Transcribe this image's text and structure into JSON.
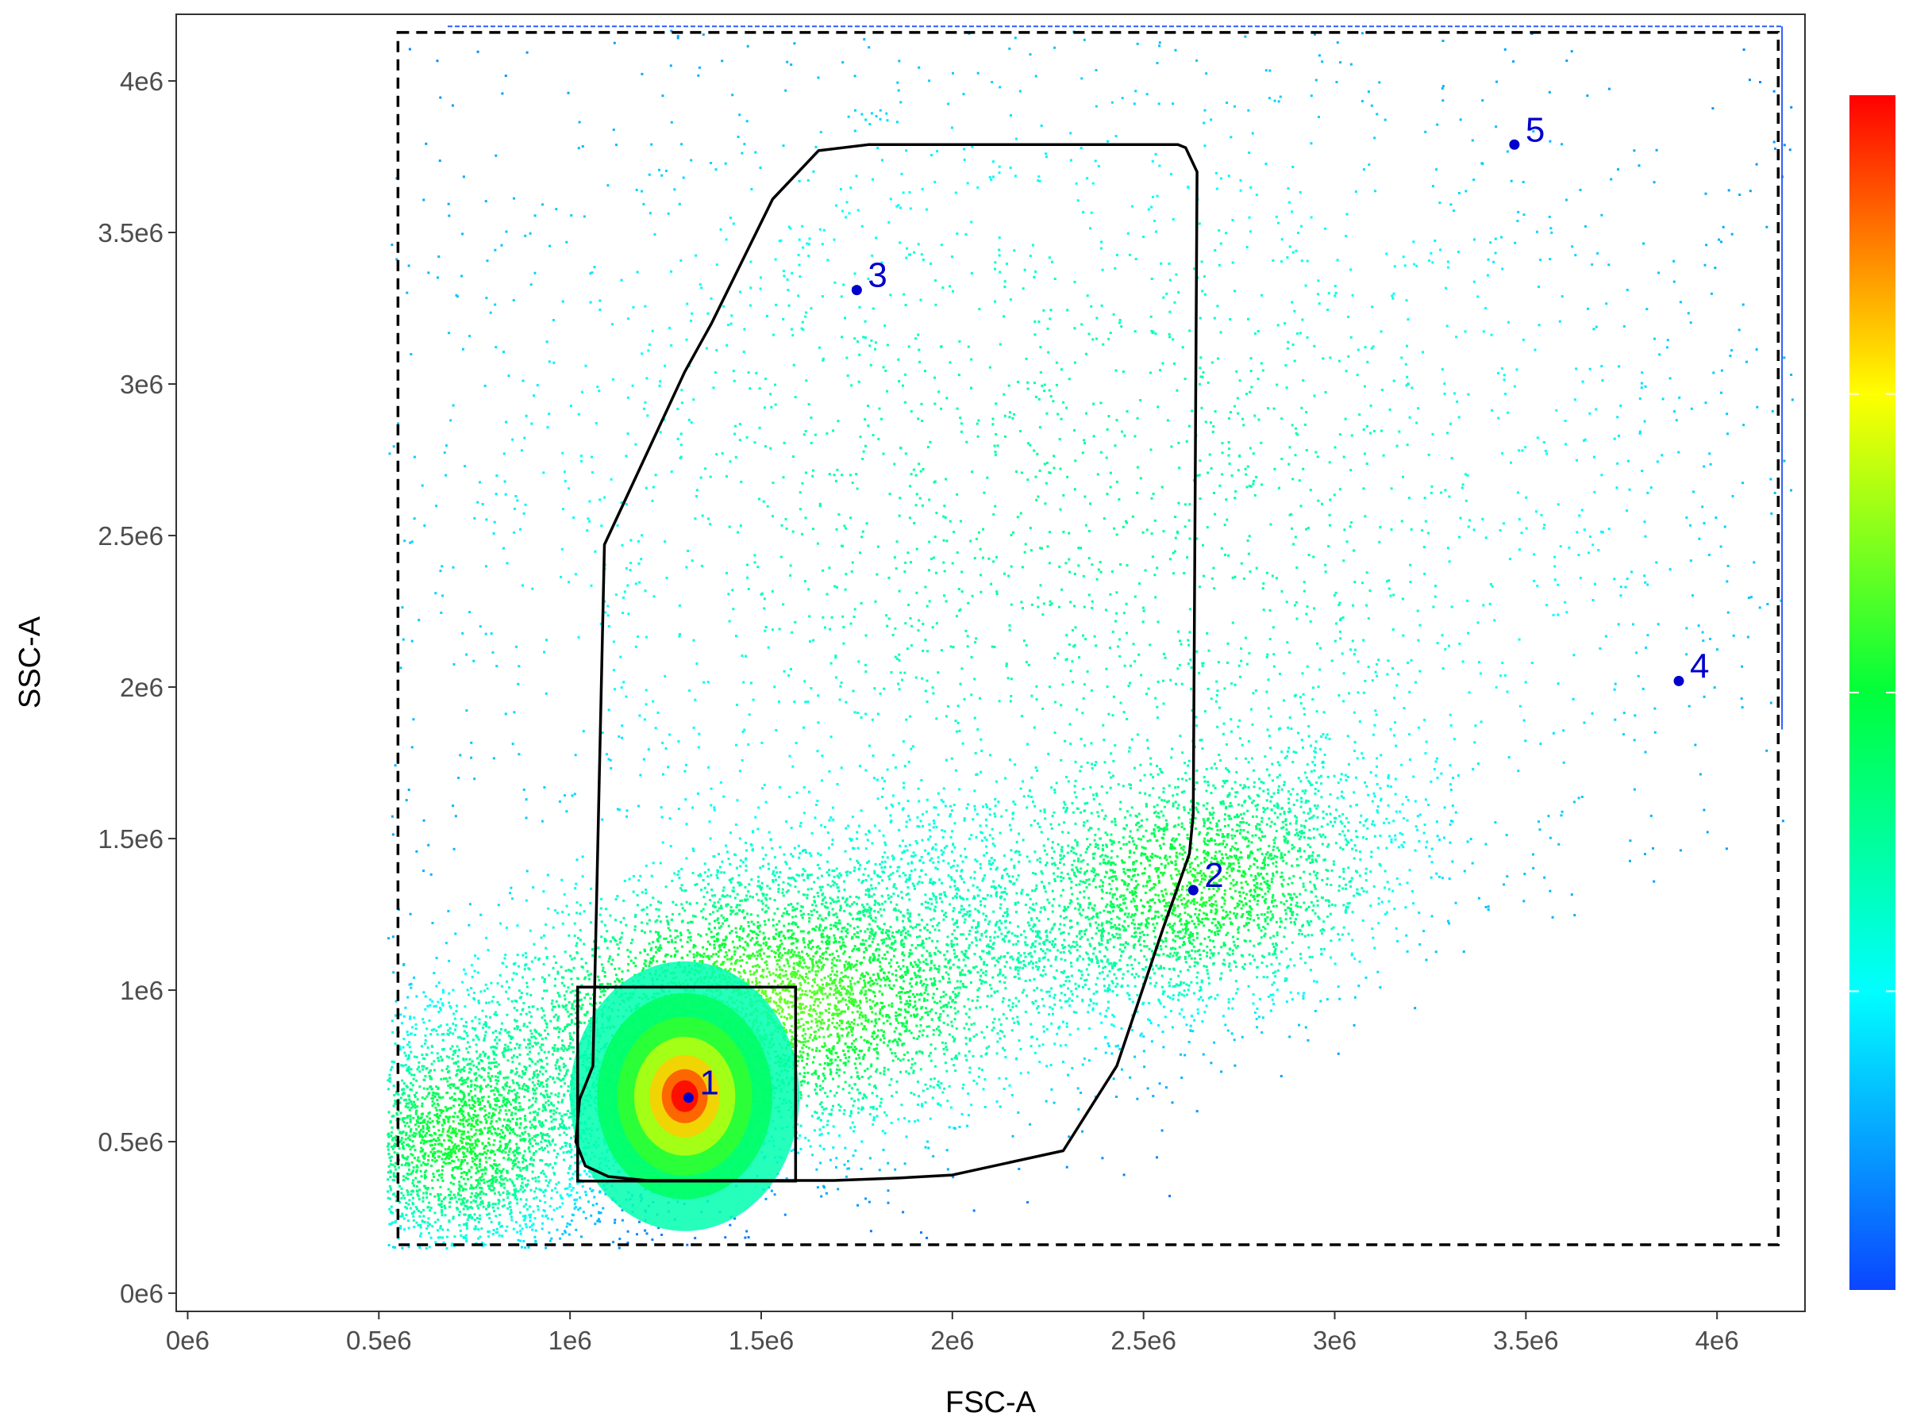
{
  "chart_data": {
    "type": "scatter",
    "subtype": "density-scatter",
    "title": "",
    "xlabel": "FSC-A",
    "ylabel": "SSC-A",
    "xlim": [
      -30000.0,
      4230000.0
    ],
    "ylim": [
      -60000.0,
      4220000.0
    ],
    "x_ticks": [
      0,
      500000,
      1000000,
      1500000,
      2000000,
      2500000,
      3000000,
      3500000,
      4000000
    ],
    "x_tick_labels": [
      "0e6",
      "0.5e6",
      "1e6",
      "1.5e6",
      "2e6",
      "2.5e6",
      "3e6",
      "3.5e6",
      "4e6"
    ],
    "y_ticks": [
      0,
      500000,
      1000000,
      1500000,
      2000000,
      2500000,
      3000000,
      3500000,
      4000000
    ],
    "y_tick_labels": [
      "0e6",
      "0.5e6",
      "1e6",
      "1.5e6",
      "2e6",
      "2.5e6",
      "3e6",
      "3.5e6",
      "4e6"
    ],
    "grid": false,
    "colorbar": {
      "position": "right",
      "colormap": [
        "#0b45ff",
        "#00ffff",
        "#00ff3a",
        "#ffff00",
        "#ff0000"
      ],
      "labels": []
    },
    "density_clusters": [
      {
        "x": 1300000,
        "y": 650000,
        "sx": 90000,
        "sy": 90000,
        "weight": 10
      },
      {
        "x": 1500000,
        "y": 950000,
        "sx": 420000,
        "sy": 260000,
        "weight": 5
      },
      {
        "x": 700000,
        "y": 500000,
        "sx": 200000,
        "sy": 220000,
        "weight": 4
      },
      {
        "x": 2650000,
        "y": 1330000,
        "sx": 270000,
        "sy": 220000,
        "weight": 3.5
      },
      {
        "x": 2300000,
        "y": 2600000,
        "sx": 1100000,
        "sy": 900000,
        "weight": 2.5
      }
    ],
    "points": [
      {
        "label": "1",
        "x": 1310000,
        "y": 645000
      },
      {
        "label": "2",
        "x": 2630000,
        "y": 1330000
      },
      {
        "label": "3",
        "x": 1750000,
        "y": 3310000
      },
      {
        "label": "4",
        "x": 3900000,
        "y": 2020000
      },
      {
        "label": "5",
        "x": 3470000,
        "y": 3790000
      }
    ],
    "gates": [
      {
        "name": "outer",
        "style": "dashed",
        "rect": {
          "x0": 550000,
          "y0": 160000,
          "x1": 4160000,
          "y1": 4160000
        }
      },
      {
        "name": "square",
        "style": "solid",
        "rect": {
          "x0": 1020000,
          "y0": 370000,
          "x1": 1590000,
          "y1": 1010000
        }
      },
      {
        "name": "polygon",
        "style": "solid",
        "points": [
          [
            1650000,
            3770000
          ],
          [
            1780000,
            3790000
          ],
          [
            2590000,
            3790000
          ],
          [
            2610000,
            3780000
          ],
          [
            2640000,
            3700000
          ],
          [
            2630000,
            1580000
          ],
          [
            2620000,
            1450000
          ],
          [
            2550000,
            1200000
          ],
          [
            2430000,
            750000
          ],
          [
            2290000,
            470000
          ],
          [
            2000000,
            390000
          ],
          [
            1860000,
            380000
          ],
          [
            1690000,
            372000
          ],
          [
            1200000,
            372000
          ],
          [
            1100000,
            385000
          ],
          [
            1040000,
            420000
          ],
          [
            1015000,
            500000
          ],
          [
            1025000,
            640000
          ],
          [
            1060000,
            750000
          ],
          [
            1090000,
            2470000
          ],
          [
            1300000,
            3040000
          ],
          [
            1370000,
            3200000
          ],
          [
            1530000,
            3610000
          ]
        ]
      }
    ],
    "ceiling_streak": {
      "y": 4180000,
      "x0": 680000,
      "x1": 4170000,
      "right_edge_y0": 1860000
    }
  }
}
